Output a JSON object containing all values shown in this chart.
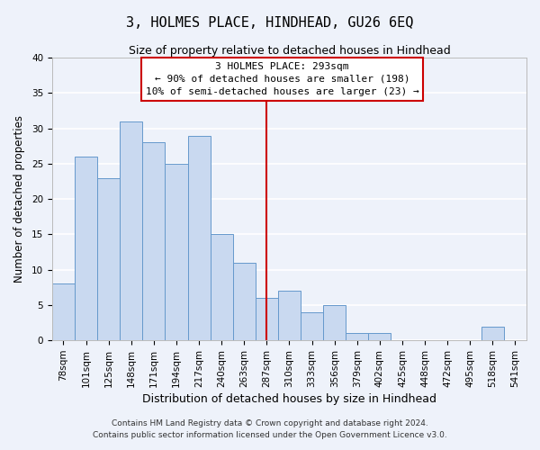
{
  "title": "3, HOLMES PLACE, HINDHEAD, GU26 6EQ",
  "subtitle": "Size of property relative to detached houses in Hindhead",
  "xlabel": "Distribution of detached houses by size in Hindhead",
  "ylabel": "Number of detached properties",
  "bar_labels": [
    "78sqm",
    "101sqm",
    "125sqm",
    "148sqm",
    "171sqm",
    "194sqm",
    "217sqm",
    "240sqm",
    "263sqm",
    "287sqm",
    "310sqm",
    "333sqm",
    "356sqm",
    "379sqm",
    "402sqm",
    "425sqm",
    "448sqm",
    "472sqm",
    "495sqm",
    "518sqm",
    "541sqm"
  ],
  "bar_values": [
    8,
    26,
    23,
    31,
    28,
    25,
    29,
    15,
    11,
    6,
    7,
    4,
    5,
    1,
    1,
    0,
    0,
    0,
    0,
    2,
    0
  ],
  "bar_color": "#c9d9f0",
  "bar_edge_color": "#6699cc",
  "vline_x_index": 9.5,
  "vline_color": "#cc0000",
  "annotation_title": "3 HOLMES PLACE: 293sqm",
  "annotation_line1": "← 90% of detached houses are smaller (198)",
  "annotation_line2": "10% of semi-detached houses are larger (23) →",
  "annotation_box_color": "#cc0000",
  "ylim": [
    0,
    40
  ],
  "yticks": [
    0,
    5,
    10,
    15,
    20,
    25,
    30,
    35,
    40
  ],
  "footnote1": "Contains HM Land Registry data © Crown copyright and database right 2024.",
  "footnote2": "Contains public sector information licensed under the Open Government Licence v3.0.",
  "bg_color": "#eef2fa",
  "grid_color": "#ffffff",
  "title_fontsize": 11,
  "subtitle_fontsize": 9,
  "xlabel_fontsize": 9,
  "ylabel_fontsize": 8.5,
  "tick_fontsize": 7.5,
  "footnote_fontsize": 6.5
}
